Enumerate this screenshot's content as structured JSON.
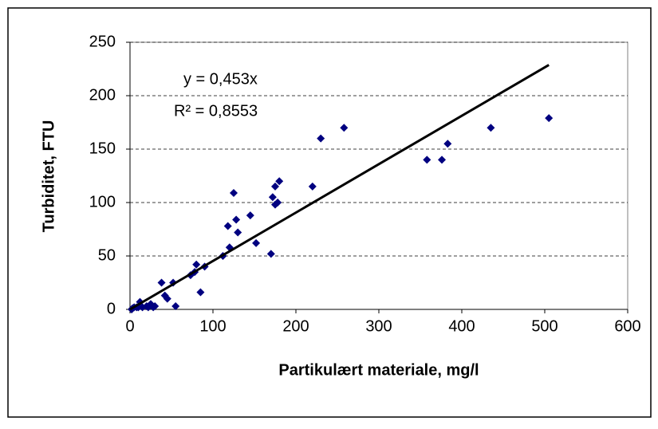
{
  "chart_data": {
    "type": "scatter",
    "x_label": "Partikulært materiale, mg/l",
    "y_label": "Turbiditet, FTU",
    "color": "#000080",
    "x": [
      505,
      435,
      383,
      376,
      358,
      258,
      230,
      220,
      180,
      178,
      175,
      175,
      172,
      170,
      152,
      145,
      130,
      128,
      125,
      120,
      118,
      112,
      90,
      85,
      80,
      78,
      73,
      55,
      52,
      45,
      42,
      38,
      30,
      28,
      25,
      22,
      20,
      15,
      12,
      10,
      8,
      5,
      3,
      2
    ],
    "values": [
      179,
      170,
      155,
      140,
      140,
      170,
      160,
      115,
      120,
      100,
      98,
      115,
      105,
      52,
      62,
      88,
      72,
      84,
      109,
      58,
      78,
      50,
      40,
      16,
      42,
      35,
      32,
      3,
      25,
      10,
      13,
      25,
      3,
      2,
      5,
      2,
      3,
      2,
      7,
      2,
      2,
      2,
      1,
      0
    ],
    "trendline": {
      "equation": "y = 0,453x",
      "r2": "R² = 0,8553",
      "slope": 0.453
    },
    "xlim": [
      0,
      600
    ],
    "xticks": [
      0,
      100,
      200,
      300,
      400,
      500,
      600
    ],
    "ylim": [
      0,
      250
    ],
    "yticks": [
      0,
      50,
      100,
      150,
      200,
      250
    ],
    "grid": true
  }
}
